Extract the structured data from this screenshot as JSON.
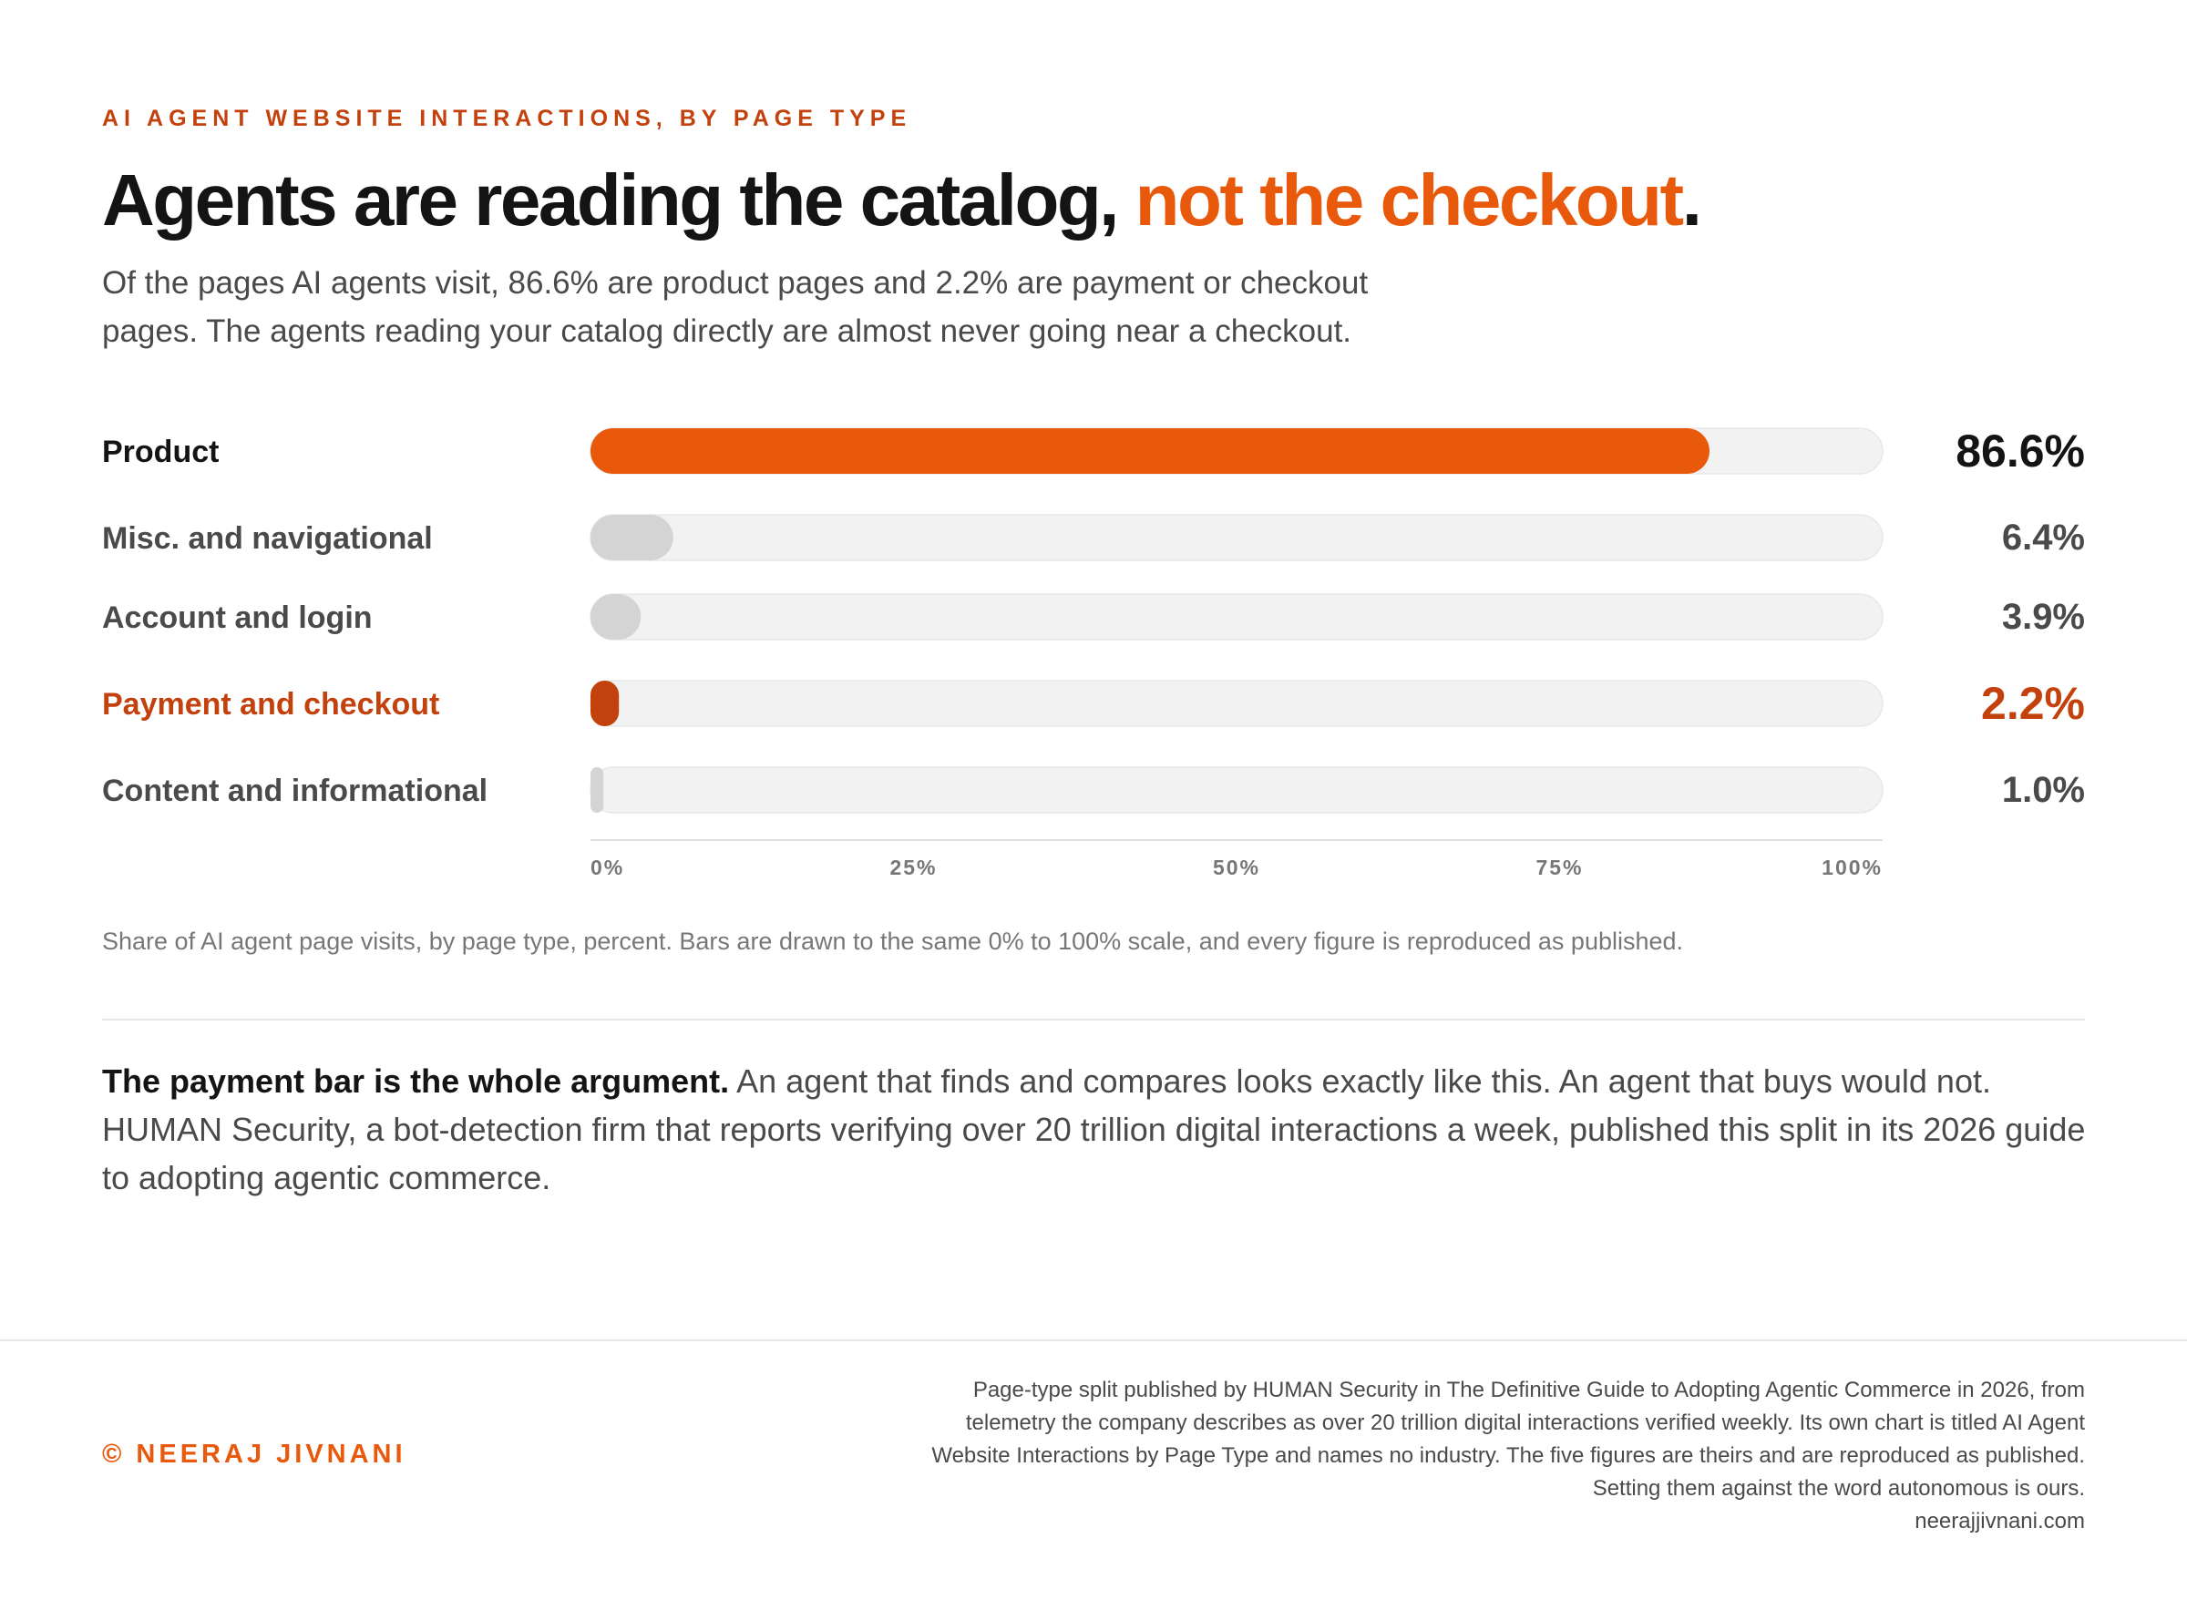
{
  "header": {
    "kicker": "AI AGENT WEBSITE INTERACTIONS, BY PAGE TYPE",
    "headline_main": "Agents are reading the catalog, ",
    "headline_accent": "not the checkout",
    "headline_end": ".",
    "subhead": "Of the pages AI agents visit, 86.6% are product pages and 2.2% are payment or checkout pages. The agents reading your catalog directly are almost never going near a checkout."
  },
  "chart_data": {
    "type": "bar",
    "orientation": "horizontal",
    "categories": [
      "Product",
      "Misc. and navigational",
      "Account and login",
      "Payment and checkout",
      "Content and informational"
    ],
    "values": [
      86.6,
      6.4,
      3.9,
      2.2,
      1.0
    ],
    "value_labels": [
      "86.6%",
      "6.4%",
      "3.9%",
      "2.2%",
      "1.0%"
    ],
    "xlim": [
      0,
      100
    ],
    "x_ticks": [
      "0%",
      "25%",
      "50%",
      "75%",
      "100%"
    ],
    "highlight": [
      "primary",
      "none",
      "none",
      "alert",
      "none"
    ],
    "grid": false,
    "colors": {
      "primary": "#e8590c",
      "alert": "#c2410c",
      "muted_bar": "#d4d4d4",
      "track": "#f2f2f2",
      "label_dark": "#141414",
      "label_muted": "#4a4a4a"
    }
  },
  "notes": {
    "chart_note": "Share of AI agent page visits, by page type, percent. Bars are drawn to the same 0% to 100% scale, and every figure is reproduced as published.",
    "argument_lead": "The payment bar is the whole argument.",
    "argument_body": " An agent that finds and compares looks exactly like this. An agent that buys would not. HUMAN Security, a bot-detection firm that reports verifying over 20 trillion digital interactions a week, published this split in its 2026 guide to adopting agentic commerce."
  },
  "footer": {
    "credit": "© NEERAJ JIVNANI",
    "source_lines": [
      "Page-type split published by HUMAN Security in The Definitive Guide to Adopting Agentic Commerce in 2026, from",
      "telemetry the company describes as over 20 trillion digital interactions verified weekly. Its own chart is titled AI Agent",
      "Website Interactions by Page Type and names no industry. The five figures are theirs and are reproduced as published.",
      "Setting them against the word autonomous is ours.",
      "neerajjivnani.com"
    ]
  }
}
